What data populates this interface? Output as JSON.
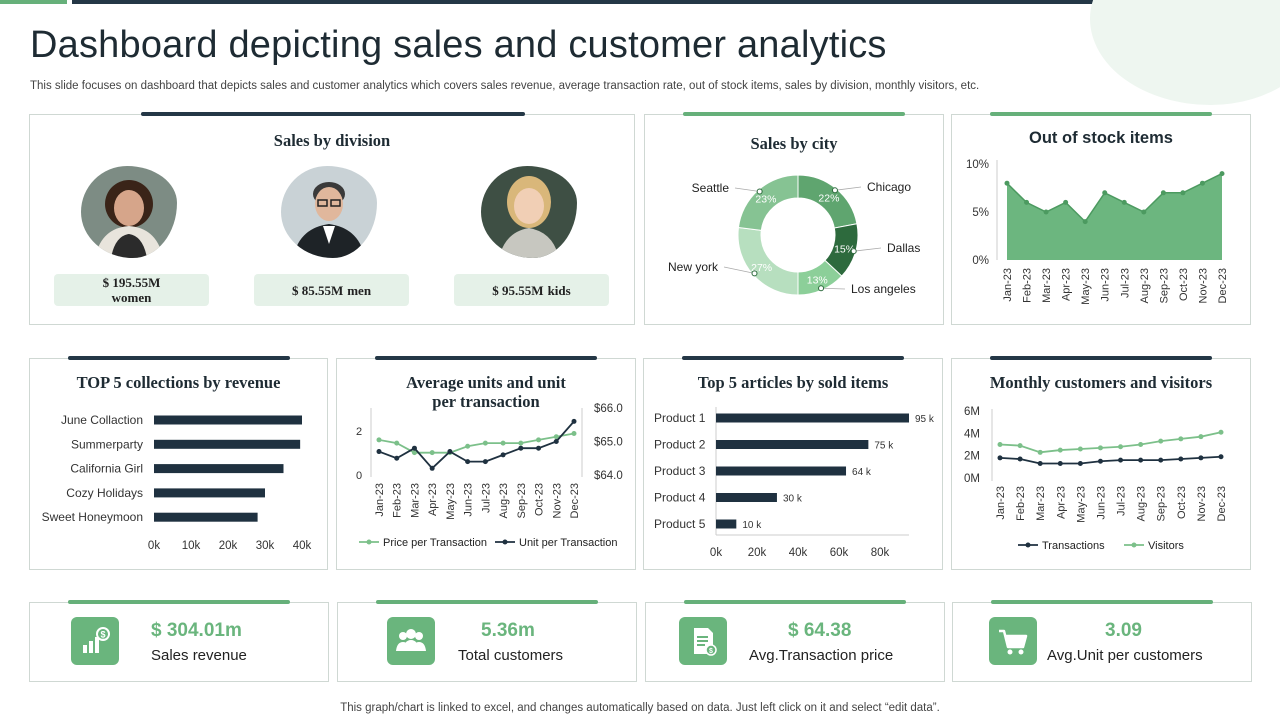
{
  "page": {
    "title": "Dashboard depicting sales and customer analytics",
    "subtitle": "This slide focuses on dashboard that depicts sales and customer analytics which covers sales revenue, average transaction rate, out of stock items, sales by division, monthly visitors, etc.",
    "footer": "This graph/chart is linked to excel,  and changes automatically based on data. Just left click on it and select “edit data”."
  },
  "sales_by_division": {
    "title": "Sales by division",
    "items": [
      {
        "value": "$ 195.55M",
        "label": "women"
      },
      {
        "value": "$ 85.55M",
        "label": "men"
      },
      {
        "value": "$ 95.55M",
        "label": "kids"
      }
    ]
  },
  "sales_by_city": {
    "title": "Sales by city"
  },
  "out_of_stock": {
    "title": "Out of stock items"
  },
  "top_collections": {
    "title": "TOP 5 collections by revenue"
  },
  "avg_units": {
    "title_line1": "Average units and unit",
    "title_line2": "per transaction"
  },
  "top_articles": {
    "title": "Top 5 articles by sold items"
  },
  "monthly_visitors": {
    "title": "Monthly customers and visitors"
  },
  "kpis": [
    {
      "value": "$ 304.01m",
      "label": "Sales revenue",
      "icon": "money-chart-icon"
    },
    {
      "value": "5.36m",
      "label": "Total customers",
      "icon": "users-group-icon"
    },
    {
      "value": "$ 64.38",
      "label": "Avg.Transaction price",
      "icon": "invoice-icon"
    },
    {
      "value": "3.09",
      "label": "Avg.Unit per customers",
      "icon": "shopping-cart-icon"
    }
  ],
  "colors": {
    "green": "#6ab57d",
    "dark": "#243746",
    "light_green": "#e5f1e8"
  },
  "chart_data": [
    {
      "id": "sales_by_city",
      "type": "pie",
      "title": "Sales by city",
      "categories": [
        "Chicago",
        "Dallas",
        "Los angeles",
        "New york",
        "Seattle"
      ],
      "values": [
        22,
        15,
        13,
        27,
        23
      ],
      "labels": [
        "22%",
        "15%",
        "13%",
        "27%",
        "23%"
      ],
      "colors": [
        "#5fa56f",
        "#2d6a3d",
        "#8ccf99",
        "#b7dfbf",
        "#86c393"
      ]
    },
    {
      "id": "out_of_stock",
      "type": "area",
      "title": "Out of stock items",
      "categories": [
        "Jan-23",
        "Feb-23",
        "Mar-23",
        "Apr-23",
        "May-23",
        "Jun-23",
        "Jul-23",
        "Aug-23",
        "Sep-23",
        "Oct-23",
        "Nov-23",
        "Dec-23"
      ],
      "values": [
        8,
        6,
        5,
        6,
        4,
        7,
        6,
        5,
        7,
        7,
        8,
        9
      ],
      "ylim": [
        0,
        10
      ],
      "yticks": [
        "0%",
        "5%",
        "10%"
      ]
    },
    {
      "id": "top_collections",
      "type": "bar",
      "orientation": "horizontal",
      "title": "TOP 5 collections by revenue",
      "categories": [
        "June Collaction",
        "Summerparty",
        "California Girl",
        "Cozy Holidays",
        "Sweet Honeymoon"
      ],
      "values": [
        40000,
        39500,
        35000,
        30000,
        28000
      ],
      "xlim": [
        0,
        40000
      ],
      "xticks": [
        "0k",
        "10k",
        "20k",
        "30k",
        "40k"
      ]
    },
    {
      "id": "avg_units",
      "type": "line",
      "title": "Average units and unit per transaction",
      "categories": [
        "Jan-23",
        "Feb-23",
        "Mar-23",
        "Apr-23",
        "May-23",
        "Jun-23",
        "Jul-23",
        "Aug-23",
        "Sep-23",
        "Oct-23",
        "Nov-23",
        "Dec-23"
      ],
      "series": [
        {
          "name": "Price per Transaction",
          "axis": "right",
          "values": [
            65.0,
            64.9,
            64.6,
            64.6,
            64.6,
            64.8,
            64.9,
            64.9,
            64.9,
            65.0,
            65.1,
            65.2
          ]
        },
        {
          "name": "Unit per Transaction",
          "axis": "left",
          "values": [
            0.7,
            0.5,
            0.8,
            0.2,
            0.7,
            0.4,
            0.4,
            0.6,
            0.8,
            0.8,
            1.0,
            1.6
          ]
        }
      ],
      "ylim_left": [
        0,
        2
      ],
      "yticks_left": [
        "0",
        "2"
      ],
      "ylim_right": [
        63.9,
        66.0
      ],
      "yticks_right": [
        "$64.0",
        "$65.0",
        "$66.0"
      ]
    },
    {
      "id": "top_articles",
      "type": "bar",
      "orientation": "horizontal",
      "title": "Top 5 articles by sold items",
      "categories": [
        "Product 1",
        "Product 2",
        "Product 3",
        "Product 4",
        "Product 5"
      ],
      "values": [
        95000,
        75000,
        64000,
        30000,
        10000
      ],
      "labels": [
        "95 k",
        "75 k",
        "64 k",
        "30 k",
        "10 k"
      ],
      "xlim": [
        0,
        95000
      ],
      "xticks": [
        "0k",
        "20k",
        "40k",
        "60k",
        "80k"
      ]
    },
    {
      "id": "monthly_visitors",
      "type": "line",
      "title": "Monthly customers and visitors",
      "categories": [
        "Jan-23",
        "Feb-23",
        "Mar-23",
        "Apr-23",
        "May-23",
        "Jun-23",
        "Jul-23",
        "Aug-23",
        "Sep-23",
        "Oct-23",
        "Nov-23",
        "Dec-23"
      ],
      "series": [
        {
          "name": "Transactions",
          "values": [
            1.8,
            1.7,
            1.3,
            1.3,
            1.3,
            1.5,
            1.6,
            1.6,
            1.6,
            1.7,
            1.8,
            1.9
          ]
        },
        {
          "name": "Visitors",
          "values": [
            3.0,
            2.9,
            2.3,
            2.5,
            2.6,
            2.7,
            2.8,
            3.0,
            3.3,
            3.5,
            3.7,
            4.1
          ]
        }
      ],
      "ylim": [
        0,
        6
      ],
      "yticks": [
        "0M",
        "2M",
        "4M",
        "6M"
      ]
    }
  ]
}
